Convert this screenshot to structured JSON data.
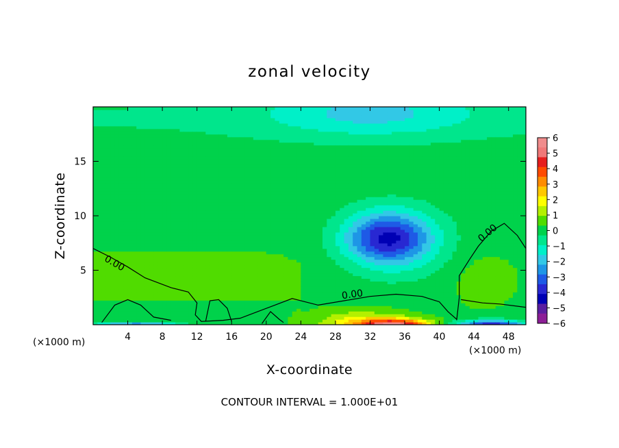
{
  "chart_data": {
    "type": "heatmap",
    "title": "zonal velocity",
    "xlabel": "X-coordinate",
    "ylabel": "Z-coordinate",
    "x_unit": "(×1000 m)",
    "footer": "CONTOUR INTERVAL = 1.000E+01",
    "xlim": [
      0,
      50
    ],
    "ylim": [
      0,
      20
    ],
    "x_ticks": [
      {
        "value": 4,
        "label": "4"
      },
      {
        "value": 8,
        "label": "8"
      },
      {
        "value": 12,
        "label": "12"
      },
      {
        "value": 16,
        "label": "16"
      },
      {
        "value": 20,
        "label": "20"
      },
      {
        "value": 24,
        "label": "24"
      },
      {
        "value": 28,
        "label": "28"
      },
      {
        "value": 32,
        "label": "32"
      },
      {
        "value": 36,
        "label": "36"
      },
      {
        "value": 40,
        "label": "40"
      },
      {
        "value": 44,
        "label": "44"
      },
      {
        "value": 48,
        "label": "48"
      }
    ],
    "y_ticks": [
      {
        "value": 5,
        "label": "5"
      },
      {
        "value": 10,
        "label": "10"
      },
      {
        "value": 15,
        "label": "15"
      }
    ],
    "colorbar": {
      "labels": [
        "6",
        "5",
        "4",
        "3",
        "2",
        "1",
        "0",
        "−1",
        "−2",
        "−3",
        "−4",
        "−5",
        "−6"
      ],
      "colors": [
        "#f08c8c",
        "#f07878",
        "#e61e1e",
        "#ff4b00",
        "#ff8c00",
        "#ffc800",
        "#ffff00",
        "#b4f000",
        "#50dc00",
        "#00d24b",
        "#00e68c",
        "#00f0c8",
        "#32c8e6",
        "#1e96e6",
        "#1e5ae6",
        "#2828d2",
        "#0000b4",
        "#5a1ea0",
        "#8c1e96"
      ],
      "range": [
        -6,
        6
      ]
    },
    "contour_label": "0.00",
    "features": [
      {
        "name": "upper-level negative region",
        "x_center": 32,
        "z_center": 7.5,
        "min_value": -3
      },
      {
        "name": "near-surface positive jet",
        "x_range": [
          26,
          41
        ],
        "z_range": [
          0,
          0.8
        ],
        "max_value": 4.5
      },
      {
        "name": "near-surface negative flow left",
        "x_range": [
          0,
          12
        ],
        "z_range": [
          0,
          0.3
        ],
        "min_value": -4
      },
      {
        "name": "near-surface negative flow right",
        "x_range": [
          42,
          50
        ],
        "z_range": [
          0,
          0.8
        ],
        "min_value": -5
      },
      {
        "name": "upper negative band",
        "x_range": [
          18,
          40
        ],
        "z_range": [
          17,
          20
        ],
        "min_value": -1.5
      }
    ]
  }
}
